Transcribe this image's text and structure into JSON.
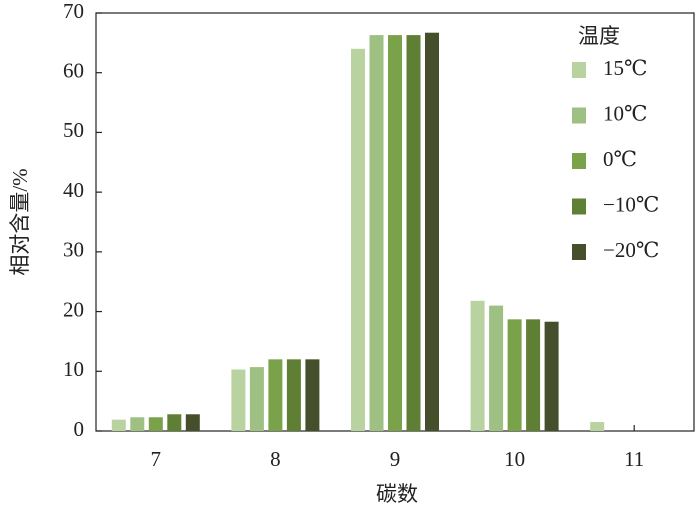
{
  "chart_data": {
    "type": "bar",
    "x_label": "碳数",
    "y_label": "相对含量/%",
    "legend_title": "温度",
    "categories": [
      "7",
      "8",
      "9",
      "10",
      "11"
    ],
    "series": [
      {
        "name": "15℃",
        "color": "#b9d3a0",
        "values": [
          1.9,
          10.3,
          64.0,
          21.8,
          1.5
        ]
      },
      {
        "name": "10℃",
        "color": "#9ec083",
        "values": [
          2.3,
          10.7,
          66.3,
          21.0,
          0
        ]
      },
      {
        "name": "0℃",
        "color": "#7aa24a",
        "values": [
          2.3,
          12.0,
          66.3,
          18.7,
          0
        ]
      },
      {
        "name": "−10℃",
        "color": "#5f7f35",
        "values": [
          2.8,
          12.0,
          66.3,
          18.7,
          0
        ]
      },
      {
        "name": "−20℃",
        "color": "#454f2c",
        "values": [
          2.8,
          12.0,
          66.7,
          18.3,
          0
        ]
      }
    ],
    "ylim": [
      0,
      70
    ],
    "yticks": [
      0,
      10,
      20,
      30,
      40,
      50,
      60,
      70
    ],
    "legend_position": "upper right"
  }
}
